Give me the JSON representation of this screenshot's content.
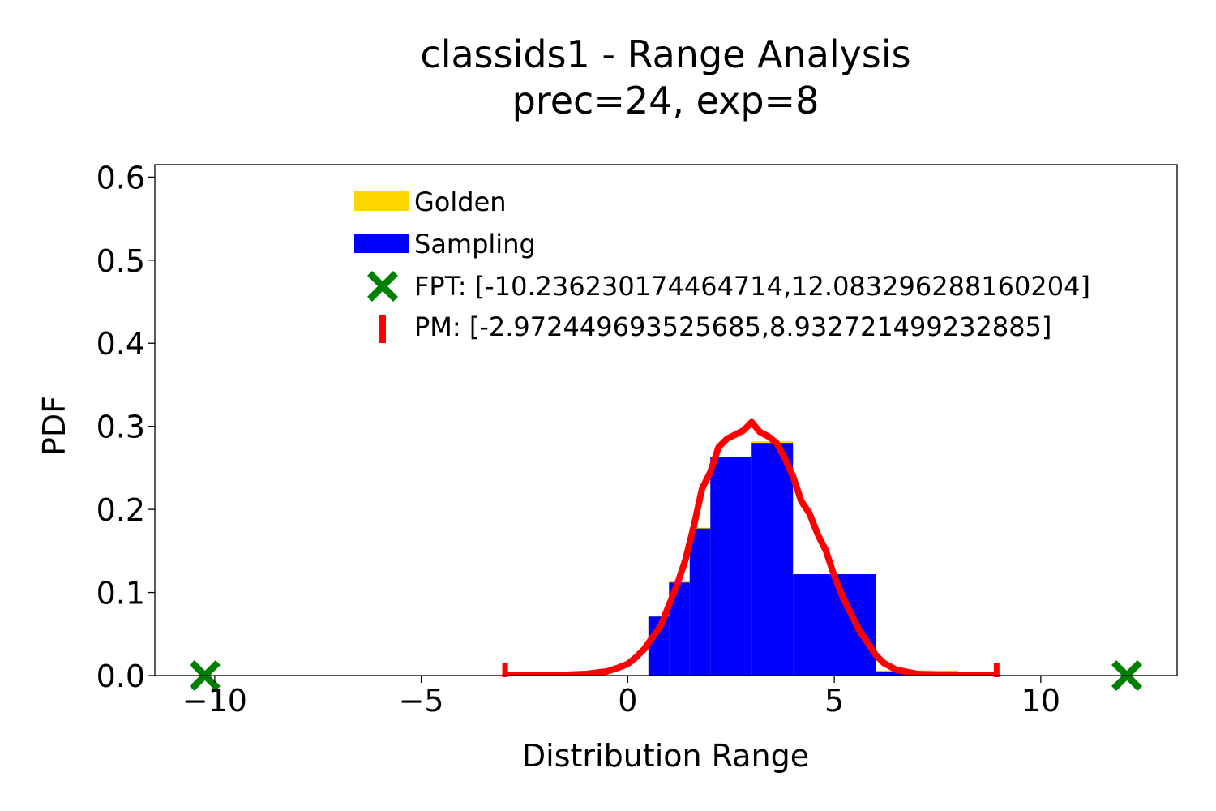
{
  "chart_data": {
    "type": "bar",
    "title": "classids1 - Range Analysis",
    "subtitle": "prec=24, exp=8",
    "xlabel": "Distribution Range",
    "ylabel": "PDF",
    "xlim": [
      -11.45,
      13.3
    ],
    "ylim": [
      0.0,
      0.615
    ],
    "xticks": [
      -10,
      -5,
      0,
      5,
      10
    ],
    "xtick_labels": [
      "−10",
      "−5",
      "0",
      "5",
      "10"
    ],
    "yticks": [
      0.0,
      0.1,
      0.2,
      0.3,
      0.4,
      0.5,
      0.6
    ],
    "ytick_labels": [
      "0.0",
      "0.1",
      "0.2",
      "0.3",
      "0.4",
      "0.5",
      "0.6"
    ],
    "grid": false,
    "legend_position": "upper-center",
    "colors": {
      "golden": "#ffd700",
      "sampling": "#0000ff",
      "fpt": "#008000",
      "pm": "#ff0000"
    },
    "series": [
      {
        "name": "Golden",
        "kind": "histogram",
        "color": "#ffd700",
        "bins": [
          {
            "x0": 0.5,
            "x1": 1.0,
            "y": 0.072
          },
          {
            "x0": 1.0,
            "x1": 1.5,
            "y": 0.114
          },
          {
            "x0": 1.5,
            "x1": 2.0,
            "y": 0.178
          },
          {
            "x0": 2.0,
            "x1": 3.0,
            "y": 0.263
          },
          {
            "x0": 3.0,
            "x1": 4.0,
            "y": 0.282
          },
          {
            "x0": 4.0,
            "x1": 6.0,
            "y": 0.122
          },
          {
            "x0": 6.0,
            "x1": 8.0,
            "y": 0.006
          }
        ]
      },
      {
        "name": "Sampling",
        "kind": "histogram",
        "color": "#0000ff",
        "bins": [
          {
            "x0": 0.5,
            "x1": 1.0,
            "y": 0.071
          },
          {
            "x0": 1.0,
            "x1": 1.5,
            "y": 0.112
          },
          {
            "x0": 1.5,
            "x1": 2.0,
            "y": 0.177
          },
          {
            "x0": 2.0,
            "x1": 3.0,
            "y": 0.263
          },
          {
            "x0": 3.0,
            "x1": 4.0,
            "y": 0.28
          },
          {
            "x0": 4.0,
            "x1": 6.0,
            "y": 0.122
          },
          {
            "x0": 6.0,
            "x1": 8.0,
            "y": 0.005
          }
        ]
      },
      {
        "name": "FPT: [-10.236230174464714,12.083296288160204]",
        "kind": "markers",
        "marker": "X",
        "color": "#008000",
        "x": [
          -10.236230174464714,
          12.083296288160204
        ],
        "y": [
          0.0,
          0.0
        ]
      },
      {
        "name": "PM: [-2.972449693525685,8.932721499232885]",
        "kind": "line",
        "color": "#ff0000",
        "endpoint_marker": "|",
        "x": [
          -2.97,
          -2.5,
          -2.0,
          -1.5,
          -1.0,
          -0.5,
          -0.2,
          0.0,
          0.2,
          0.4,
          0.6,
          0.8,
          1.0,
          1.2,
          1.4,
          1.6,
          1.8,
          2.0,
          2.2,
          2.4,
          2.6,
          2.8,
          3.0,
          3.2,
          3.4,
          3.6,
          3.8,
          4.0,
          4.2,
          4.4,
          4.6,
          4.8,
          5.0,
          5.2,
          5.4,
          5.6,
          5.8,
          6.0,
          6.2,
          6.5,
          7.0,
          7.5,
          8.0,
          8.5,
          8.93
        ],
        "y": [
          0.0,
          0.0,
          0.001,
          0.001,
          0.002,
          0.005,
          0.01,
          0.014,
          0.022,
          0.032,
          0.046,
          0.06,
          0.085,
          0.11,
          0.14,
          0.18,
          0.225,
          0.245,
          0.275,
          0.285,
          0.29,
          0.295,
          0.305,
          0.293,
          0.288,
          0.28,
          0.262,
          0.24,
          0.21,
          0.195,
          0.17,
          0.15,
          0.12,
          0.095,
          0.075,
          0.055,
          0.04,
          0.025,
          0.015,
          0.007,
          0.002,
          0.001,
          0.0,
          0.0,
          0.0
        ]
      }
    ]
  }
}
